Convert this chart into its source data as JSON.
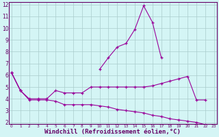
{
  "x": [
    0,
    1,
    2,
    3,
    4,
    5,
    6,
    7,
    8,
    9,
    10,
    11,
    12,
    13,
    14,
    15,
    16,
    17,
    18,
    19,
    20,
    21,
    22,
    23
  ],
  "line1_y": [
    6.2,
    4.7,
    null,
    null,
    null,
    null,
    null,
    null,
    null,
    null,
    6.5,
    7.5,
    8.4,
    8.7,
    9.9,
    11.9,
    10.5,
    7.5,
    null,
    null,
    null,
    null,
    null,
    null
  ],
  "line2_y": [
    6.2,
    4.7,
    4.0,
    4.0,
    4.0,
    4.7,
    4.5,
    4.5,
    4.5,
    5.0,
    5.0,
    5.0,
    5.0,
    5.0,
    5.0,
    5.0,
    5.1,
    5.3,
    5.5,
    5.7,
    5.9,
    3.9,
    3.9,
    null
  ],
  "line3_y": [
    6.2,
    4.7,
    3.9,
    3.9,
    3.9,
    3.8,
    3.5,
    3.5,
    3.5,
    3.5,
    3.4,
    3.3,
    3.1,
    3.0,
    2.9,
    2.8,
    2.6,
    2.5,
    2.3,
    2.2,
    2.1,
    2.0,
    1.8,
    1.7
  ],
  "color": "#990099",
  "bg_color": "#d4f5f5",
  "grid_color": "#aacccc",
  "axis_color": "#660066",
  "xlabel": "Windchill (Refroidissement éolien,°C)",
  "ylim": [
    2,
    12
  ],
  "xlim": [
    -0.3,
    23.3
  ],
  "yticks": [
    2,
    3,
    4,
    5,
    6,
    7,
    8,
    9,
    10,
    11,
    12
  ],
  "xticks": [
    0,
    1,
    2,
    3,
    4,
    5,
    6,
    7,
    8,
    9,
    10,
    11,
    12,
    13,
    14,
    15,
    16,
    17,
    18,
    19,
    20,
    21,
    22,
    23
  ]
}
